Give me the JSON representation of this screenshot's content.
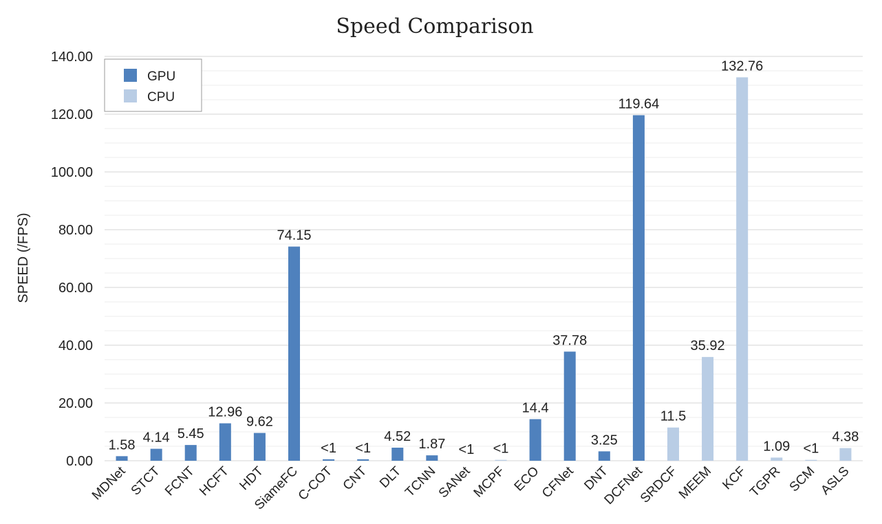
{
  "chart_data": {
    "type": "bar",
    "title": "Speed Comparison",
    "xlabel": "",
    "ylabel": "SPEED (/FPS)",
    "ylim": [
      0,
      140
    ],
    "yticks": [
      "0.00",
      "20.00",
      "40.00",
      "60.00",
      "80.00",
      "100.00",
      "120.00",
      "140.00"
    ],
    "ytick_values": [
      0,
      20,
      40,
      60,
      80,
      100,
      120,
      140
    ],
    "grid": true,
    "legend_position": "top-left",
    "categories": [
      "MDNet",
      "STCT",
      "FCNT",
      "HCFT",
      "HDT",
      "SiameFC",
      "C-COT",
      "CNT",
      "DLT",
      "TCNN",
      "SANet",
      "MCPF",
      "ECO",
      "CFNet",
      "DNT",
      "DCFNet",
      "SRDCF",
      "MEEM",
      "KCF",
      "TGPR",
      "SCM",
      "ASLS"
    ],
    "series": [
      {
        "name": "GPU",
        "color": "#4f81bd",
        "values": [
          1.58,
          4.14,
          5.45,
          12.96,
          9.62,
          74.15,
          0.5,
          0.5,
          4.52,
          1.87,
          null,
          null,
          14.4,
          37.78,
          3.25,
          119.64,
          null,
          null,
          null,
          null,
          null,
          null
        ],
        "labels": [
          "1.58",
          "4.14",
          "5.45",
          "12.96",
          "9.62",
          "74.15",
          "<1",
          "<1",
          "4.52",
          "1.87",
          "<1",
          "",
          "14.4",
          "37.78",
          "3.25",
          "119.64",
          "",
          "",
          "",
          "",
          "",
          ""
        ]
      },
      {
        "name": "CPU",
        "color": "#b9cde5",
        "values": [
          null,
          null,
          null,
          null,
          null,
          null,
          null,
          null,
          null,
          null,
          null,
          0.3,
          null,
          null,
          null,
          null,
          11.5,
          35.92,
          132.76,
          1.09,
          0.3,
          4.38
        ],
        "labels": [
          "",
          "",
          "",
          "",
          "",
          "",
          "",
          "",
          "",
          "",
          "",
          "<1",
          "",
          "",
          "",
          "",
          "11.5",
          "35.92",
          "132.76",
          "1.09",
          "<1",
          "4.38"
        ]
      }
    ]
  }
}
